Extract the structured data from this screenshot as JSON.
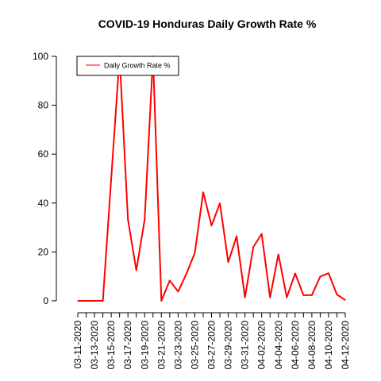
{
  "chart_data": {
    "type": "line",
    "title": "COVID-19 Honduras Daily Growth Rate %",
    "xlabel": "",
    "ylabel": "",
    "ylim": [
      0,
      100
    ],
    "yticks": [
      0,
      20,
      40,
      60,
      80,
      100
    ],
    "x": [
      "03-11-2020",
      "03-12-2020",
      "03-13-2020",
      "03-14-2020",
      "03-15-2020",
      "03-16-2020",
      "03-17-2020",
      "03-18-2020",
      "03-19-2020",
      "03-20-2020",
      "03-21-2020",
      "03-22-2020",
      "03-23-2020",
      "03-24-2020",
      "03-25-2020",
      "03-26-2020",
      "03-27-2020",
      "03-28-2020",
      "03-29-2020",
      "03-30-2020",
      "03-31-2020",
      "04-01-2020",
      "04-02-2020",
      "04-03-2020",
      "04-04-2020",
      "04-05-2020",
      "04-06-2020",
      "04-07-2020",
      "04-08-2020",
      "04-09-2020",
      "04-10-2020",
      "04-11-2020",
      "04-12-2020"
    ],
    "xtick_labels": [
      "03-11-2020",
      "03-13-2020",
      "03-15-2020",
      "03-17-2020",
      "03-19-2020",
      "03-21-2020",
      "03-23-2020",
      "03-25-2020",
      "03-27-2020",
      "03-29-2020",
      "03-31-2020",
      "04-02-2020",
      "04-04-2020",
      "04-06-2020",
      "04-08-2020",
      "04-10-2020",
      "04-12-2020"
    ],
    "series": [
      {
        "name": "Daily Growth Rate %",
        "color": "#ff0000",
        "values": [
          0,
          0,
          0,
          0,
          50,
          100,
          33.3,
          12.5,
          33.3,
          100,
          0,
          8.3,
          3.8,
          11.1,
          19.6,
          44.4,
          30.8,
          39.9,
          15.8,
          26.4,
          1.4,
          22.0,
          27.4,
          1.4,
          19.0,
          1.4,
          11.2,
          2.3,
          2.3,
          9.9,
          11.3,
          2.6,
          0.3
        ]
      }
    ],
    "legend": {
      "position": "top-left",
      "entries": [
        "Daily Growth Rate %"
      ]
    },
    "grid": false
  }
}
